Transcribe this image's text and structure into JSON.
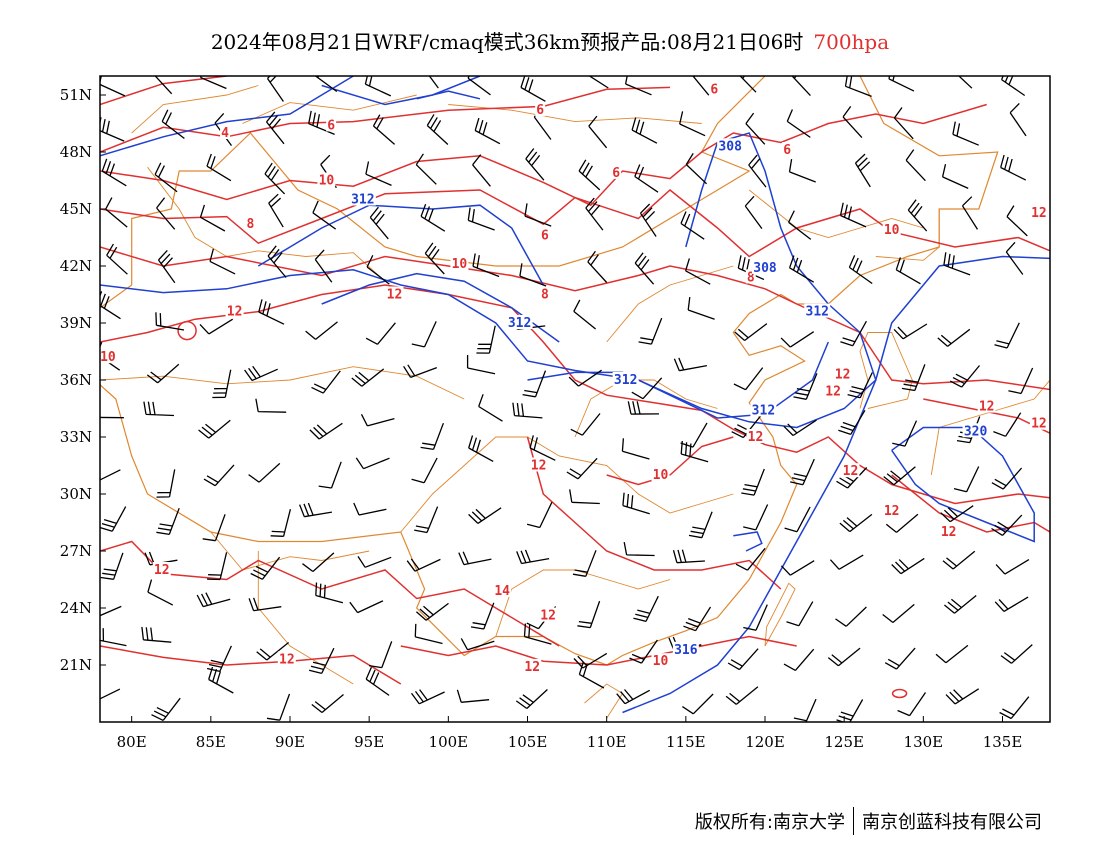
{
  "title": {
    "main": "2024年08月21日WRF/cmaq模式36km预报产品:08月21日06时",
    "level": "700hpa",
    "level_color": "#e03030"
  },
  "axes": {
    "lat_labels": [
      "51N",
      "48N",
      "45N",
      "42N",
      "39N",
      "36N",
      "33N",
      "30N",
      "27N",
      "24N",
      "21N"
    ],
    "lat_values": [
      51,
      48,
      45,
      42,
      39,
      36,
      33,
      30,
      27,
      24,
      21
    ],
    "lon_labels": [
      "80E",
      "85E",
      "90E",
      "95E",
      "100E",
      "105E",
      "110E",
      "115E",
      "120E",
      "125E",
      "130E",
      "135E"
    ],
    "lon_values": [
      80,
      85,
      90,
      95,
      100,
      105,
      110,
      115,
      120,
      125,
      130,
      135
    ],
    "lon_range": [
      78,
      138
    ],
    "lat_range": [
      18,
      52
    ]
  },
  "colors": {
    "temperature_contour": "#e03030",
    "height_contour": "#2040d0",
    "boundary": "#e08830",
    "wind_barb": "#000000"
  },
  "height_labels": [
    {
      "text": "308",
      "lon": 117.8,
      "lat": 48.3
    },
    {
      "text": "312",
      "lon": 94.6,
      "lat": 45.5
    },
    {
      "text": "308",
      "lon": 120.0,
      "lat": 41.9
    },
    {
      "text": "312",
      "lon": 123.3,
      "lat": 39.6
    },
    {
      "text": "312",
      "lon": 104.5,
      "lat": 39.0
    },
    {
      "text": "312",
      "lon": 111.2,
      "lat": 36.0
    },
    {
      "text": "312",
      "lon": 119.9,
      "lat": 34.4
    },
    {
      "text": "320",
      "lon": 133.3,
      "lat": 33.3
    },
    {
      "text": "316",
      "lon": 115.0,
      "lat": 21.8
    }
  ],
  "temp_labels": [
    {
      "text": "4",
      "lon": 85.9,
      "lat": 49.0
    },
    {
      "text": "6",
      "lon": 92.6,
      "lat": 49.4
    },
    {
      "text": "6",
      "lon": 105.8,
      "lat": 50.2
    },
    {
      "text": "6",
      "lon": 116.8,
      "lat": 51.3
    },
    {
      "text": "6",
      "lon": 110.6,
      "lat": 46.9
    },
    {
      "text": "6",
      "lon": 106.1,
      "lat": 43.6
    },
    {
      "text": "6",
      "lon": 121.4,
      "lat": 48.1
    },
    {
      "text": "8",
      "lon": 87.5,
      "lat": 44.2
    },
    {
      "text": "8",
      "lon": 106.1,
      "lat": 40.5
    },
    {
      "text": "8",
      "lon": 119.1,
      "lat": 41.4
    },
    {
      "text": "10",
      "lon": 92.3,
      "lat": 46.5
    },
    {
      "text": "10",
      "lon": 100.7,
      "lat": 42.1
    },
    {
      "text": "10",
      "lon": 128.0,
      "lat": 43.9
    },
    {
      "text": "10",
      "lon": 78.5,
      "lat": 37.2
    },
    {
      "text": "10",
      "lon": 113.4,
      "lat": 31.0
    },
    {
      "text": "10",
      "lon": 113.4,
      "lat": 21.2
    },
    {
      "text": "12",
      "lon": 86.5,
      "lat": 39.6
    },
    {
      "text": "12",
      "lon": 96.6,
      "lat": 40.5
    },
    {
      "text": "12",
      "lon": 134.0,
      "lat": 34.6
    },
    {
      "text": "12",
      "lon": 124.3,
      "lat": 35.4
    },
    {
      "text": "12",
      "lon": 124.9,
      "lat": 36.3
    },
    {
      "text": "12",
      "lon": 119.4,
      "lat": 33.0
    },
    {
      "text": "12",
      "lon": 137.3,
      "lat": 44.8
    },
    {
      "text": "12",
      "lon": 137.3,
      "lat": 33.7
    },
    {
      "text": "12",
      "lon": 105.7,
      "lat": 31.5
    },
    {
      "text": "12",
      "lon": 125.4,
      "lat": 31.2
    },
    {
      "text": "12",
      "lon": 128.0,
      "lat": 29.1
    },
    {
      "text": "12",
      "lon": 131.6,
      "lat": 28.0
    },
    {
      "text": "12",
      "lon": 81.9,
      "lat": 26.0
    },
    {
      "text": "12",
      "lon": 106.3,
      "lat": 23.6
    },
    {
      "text": "12",
      "lon": 89.8,
      "lat": 21.3
    },
    {
      "text": "12",
      "lon": 105.3,
      "lat": 20.9
    },
    {
      "text": "14",
      "lon": 103.4,
      "lat": 24.9
    }
  ],
  "copyright": {
    "owner": "版权所有:南京大学",
    "company": "南京创蓝科技有限公司"
  }
}
